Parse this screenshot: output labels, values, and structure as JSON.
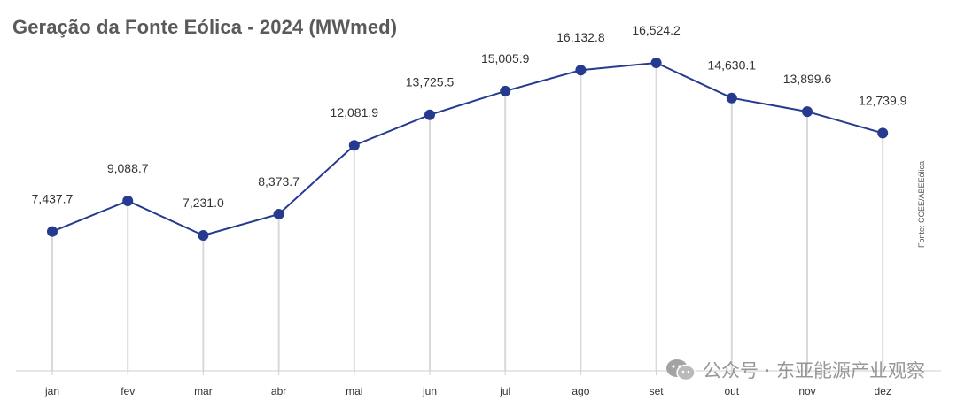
{
  "title": "Geração da Fonte Eólica - 2024 (MWmed)",
  "source": "Fonte: CCEE/ABEEólica",
  "watermark": "公众号 · 东亚能源产业观察",
  "colors": {
    "line": "#263a8f",
    "marker": "#263a8f",
    "drop_line": "#d9d9d9",
    "axis": "#cfcfcf",
    "title": "#5a5a5a"
  },
  "chart_data": {
    "type": "line",
    "categories": [
      "jan",
      "fev",
      "mar",
      "abr",
      "mai",
      "jun",
      "jul",
      "ago",
      "set",
      "out",
      "nov",
      "dez"
    ],
    "values": [
      7437.7,
      9088.7,
      7231.0,
      8373.7,
      12081.9,
      13725.5,
      15005.9,
      16132.8,
      16524.2,
      14630.1,
      13899.6,
      12739.9
    ],
    "labels": [
      "7,437.7",
      "9,088.7",
      "7,231.0",
      "8,373.7",
      "12,081.9",
      "13,725.5",
      "15,005.9",
      "16,132.8",
      "16,524.2",
      "14,630.1",
      "13,899.6",
      "12,739.9"
    ],
    "xlabel": "",
    "ylabel": "",
    "grid": false,
    "legend": "none"
  }
}
